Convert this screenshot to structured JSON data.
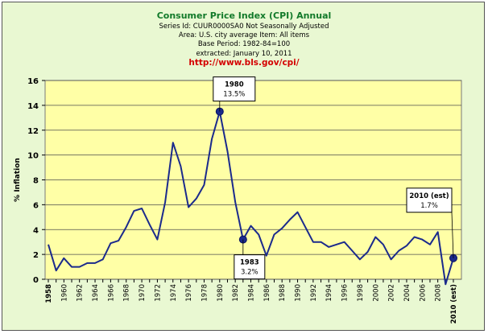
{
  "titles": {
    "title": "Consumer Price Index (CPI) Annual",
    "series_id": "Series Id: CUUR0000SA0 Not Seasonally Adjusted",
    "area": "Area: U.S. city average Item: All items",
    "base_period": "Base Period:  1982-84=100",
    "extracted": "extracted: January 10, 2011",
    "url": "http://www.bls.gov/cpi/"
  },
  "colors": {
    "plot_bg": "#ffffa6",
    "outer_bg": "#e9f8d2",
    "line": "#1b2a8c",
    "title": "#127a2a",
    "url": "#d40000"
  },
  "chart_data": {
    "type": "line",
    "title": "Consumer Price Index (CPI) Annual",
    "xlabel": "",
    "ylabel": "% Inflation",
    "ylim": [
      0,
      16
    ],
    "yticks": [
      "0",
      "2",
      "4",
      "6",
      "8",
      "10",
      "12",
      "14",
      "16"
    ],
    "grid": true,
    "legend": "none",
    "xtick_labels": [
      "1958",
      "1960",
      "1962",
      "1964",
      "1966",
      "1968",
      "1970",
      "1972",
      "1974",
      "1976",
      "1978",
      "1980",
      "1982",
      "1984",
      "1986",
      "1988",
      "1990",
      "1992",
      "1994",
      "1996",
      "1998",
      "2000",
      "2002",
      "2004",
      "2006",
      "2008",
      "2010 (est)"
    ],
    "x": [
      1958,
      1959,
      1960,
      1961,
      1962,
      1963,
      1964,
      1965,
      1966,
      1967,
      1968,
      1969,
      1970,
      1971,
      1972,
      1973,
      1974,
      1975,
      1976,
      1977,
      1978,
      1979,
      1980,
      1981,
      1982,
      1983,
      1984,
      1985,
      1986,
      1987,
      1988,
      1989,
      1990,
      1991,
      1992,
      1993,
      1994,
      1995,
      1996,
      1997,
      1998,
      1999,
      2000,
      2001,
      2002,
      2003,
      2004,
      2005,
      2006,
      2007,
      2008,
      2009,
      2010
    ],
    "series": [
      {
        "values": [
          2.8,
          0.7,
          1.7,
          1.0,
          1.0,
          1.3,
          1.3,
          1.6,
          2.9,
          3.1,
          4.2,
          5.5,
          5.7,
          4.4,
          3.2,
          6.2,
          11.0,
          9.1,
          5.8,
          6.5,
          7.6,
          11.3,
          13.5,
          10.3,
          6.2,
          3.2,
          4.3,
          3.6,
          1.9,
          3.6,
          4.1,
          4.8,
          5.4,
          4.2,
          3.0,
          3.0,
          2.6,
          2.8,
          3.0,
          2.3,
          1.6,
          2.2,
          3.4,
          2.8,
          1.6,
          2.3,
          2.7,
          3.4,
          3.2,
          2.8,
          3.8,
          -0.4,
          1.7
        ]
      }
    ],
    "annotations": [
      {
        "x": 1980,
        "y": 13.5,
        "year": "1980",
        "value": "13.5%"
      },
      {
        "x": 1983,
        "y": 3.2,
        "year": "1983",
        "value": "3.2%"
      },
      {
        "x": 2010,
        "y": 1.7,
        "year": "2010 (est)",
        "value": "1.7%"
      }
    ]
  }
}
